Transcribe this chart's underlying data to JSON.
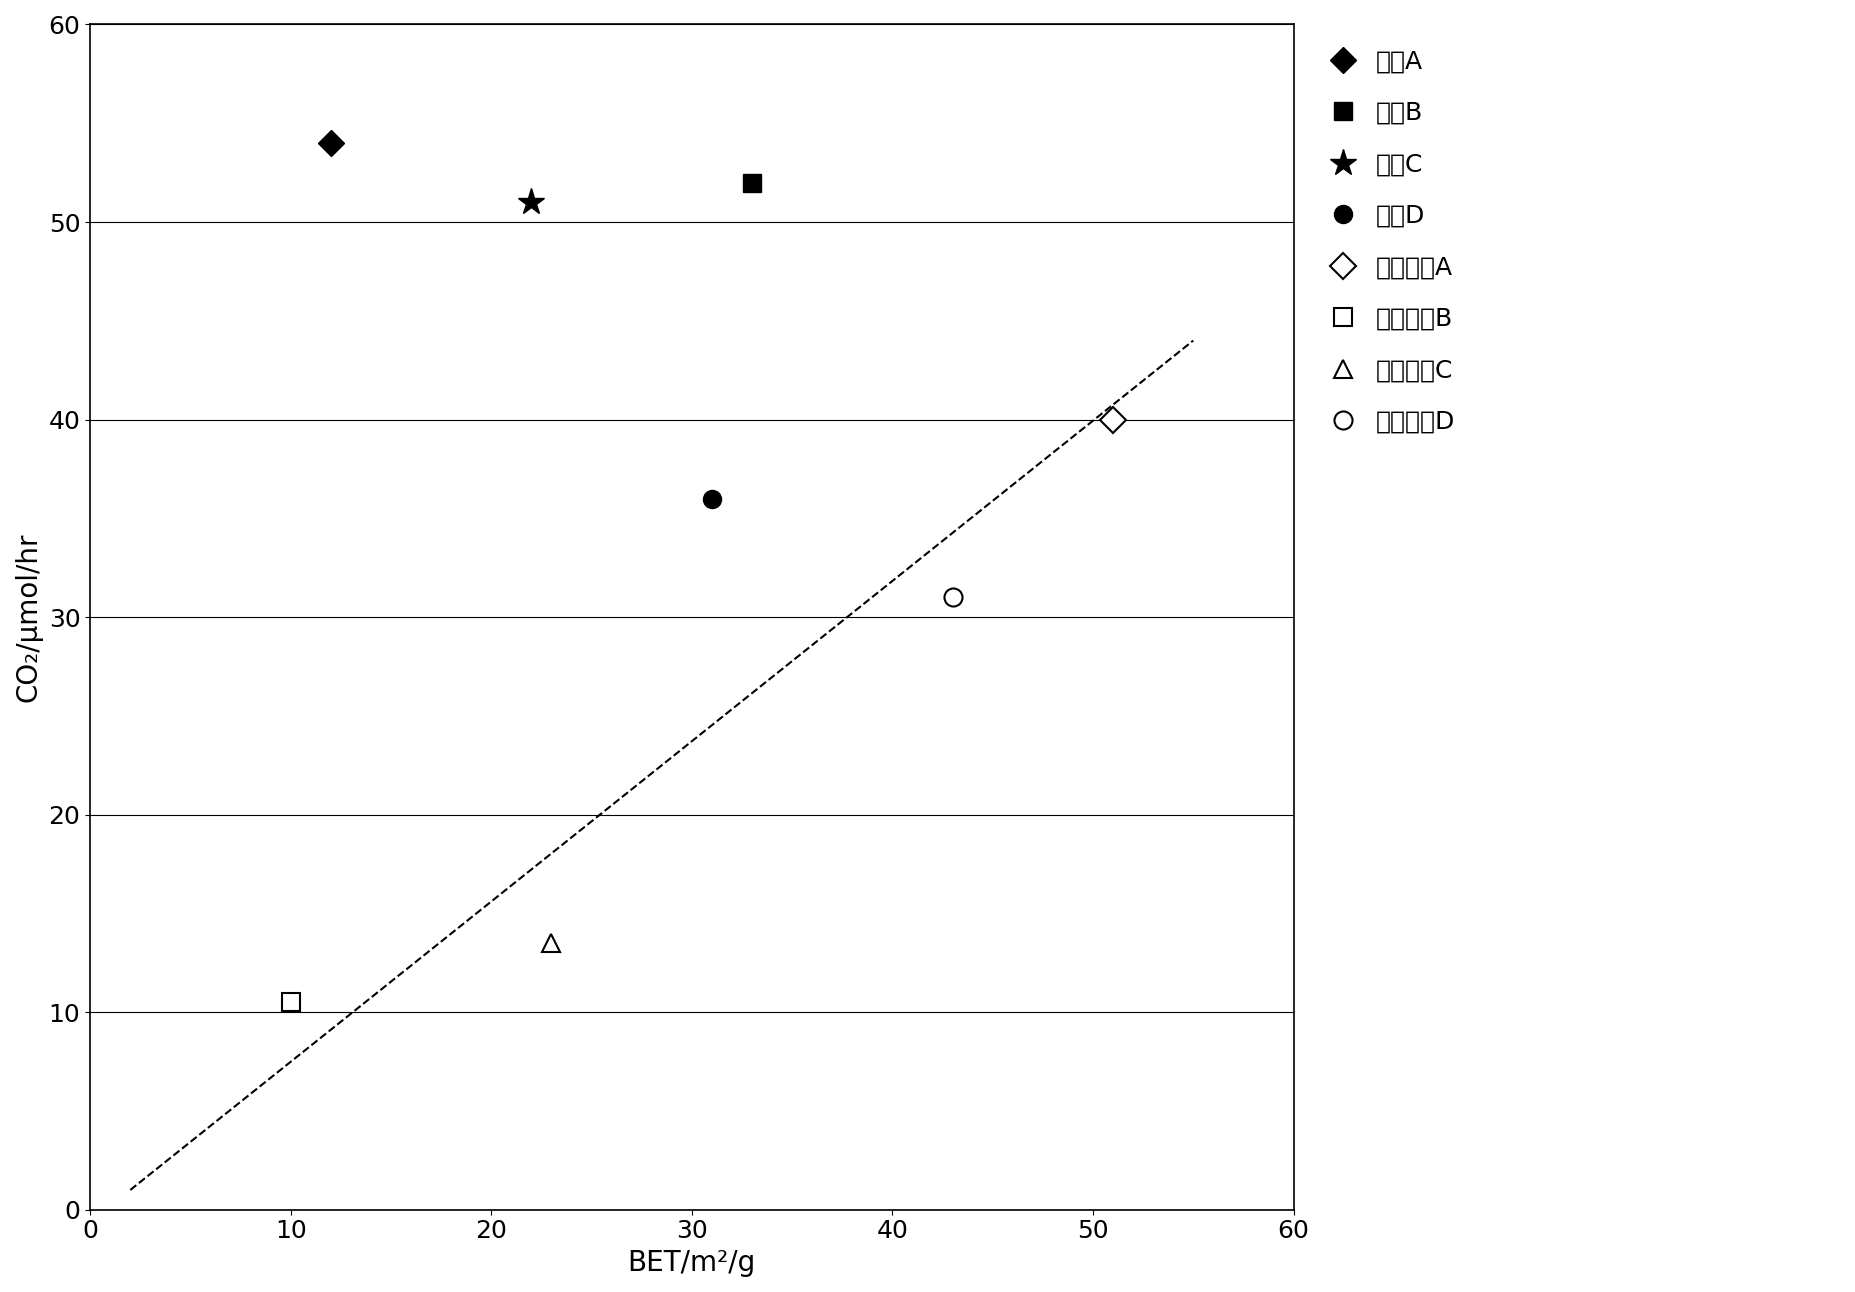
{
  "title": "",
  "xlabel": "BET/m²/g",
  "ylabel": "CO₂/μmol/hr",
  "xlim": [
    0,
    60
  ],
  "ylim": [
    0,
    60
  ],
  "xticks": [
    0,
    10,
    20,
    30,
    40,
    50,
    60
  ],
  "yticks": [
    0,
    10,
    20,
    30,
    40,
    50,
    60
  ],
  "background_color": "#ffffff",
  "series": [
    {
      "label": "样品A",
      "x": [
        12
      ],
      "y": [
        54
      ],
      "marker": "D",
      "color": "black",
      "filled": true,
      "markersize": 13
    },
    {
      "label": "样品B",
      "x": [
        33
      ],
      "y": [
        52
      ],
      "marker": "s",
      "color": "black",
      "filled": true,
      "markersize": 13
    },
    {
      "label": "样品C",
      "x": [
        22
      ],
      "y": [
        51
      ],
      "marker": "*",
      "color": "black",
      "filled": true,
      "markersize": 20
    },
    {
      "label": "样品D",
      "x": [
        31
      ],
      "y": [
        36
      ],
      "marker": "o",
      "color": "black",
      "filled": true,
      "markersize": 13
    },
    {
      "label": "市售粉未A",
      "x": [
        51
      ],
      "y": [
        40
      ],
      "marker": "D",
      "color": "black",
      "filled": false,
      "markersize": 13
    },
    {
      "label": "市售粉未B",
      "x": [
        10
      ],
      "y": [
        10.5
      ],
      "marker": "s",
      "color": "black",
      "filled": false,
      "markersize": 13
    },
    {
      "label": "市售粉未C",
      "x": [
        23
      ],
      "y": [
        13.5
      ],
      "marker": "^",
      "color": "black",
      "filled": false,
      "markersize": 13
    },
    {
      "label": "市售粉未D",
      "x": [
        43
      ],
      "y": [
        31
      ],
      "marker": "o",
      "color": "black",
      "filled": false,
      "markersize": 13
    }
  ],
  "trendline": {
    "x_start": 2,
    "y_start": 1,
    "x_end": 55,
    "y_end": 44,
    "color": "black",
    "linestyle": "--",
    "linewidth": 1.5
  },
  "legend_fontsize": 18,
  "axis_fontsize": 20,
  "tick_fontsize": 18
}
